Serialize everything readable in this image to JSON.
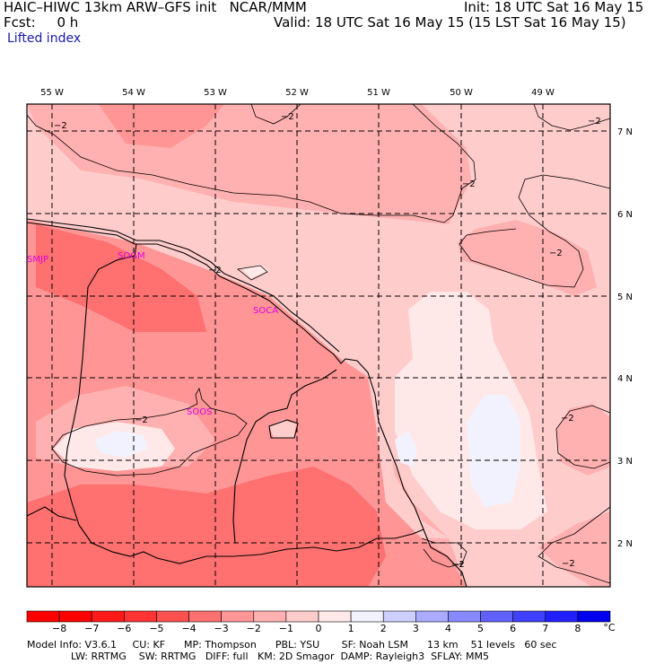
{
  "header": {
    "model_line": "HAIC–HIWC 13km ARW–GFS init   NCAR/MMM",
    "fcst_line": "Fcst:     0 h",
    "field": "Lifted index",
    "init": "Init: 18 UTC Sat 16 May 15",
    "valid": "Valid: 18 UTC Sat 16 May 15 (15 LST Sat 16 May 15)"
  },
  "map": {
    "lon_labels": [
      "55 W",
      "54 W",
      "53 W",
      "52 W",
      "51 W",
      "50 W",
      "49 W"
    ],
    "lat_labels": [
      "7 N",
      "6 N",
      "5 N",
      "4 N",
      "3 N",
      "2 N"
    ],
    "stations": [
      "SMJP",
      "SOGM",
      "SOCA",
      "SOOS"
    ],
    "contour_label": "−2"
  },
  "colorbar": {
    "labels": [
      "−8",
      "−7",
      "−6",
      "−5",
      "−4",
      "−3",
      "−2",
      "−1",
      "0",
      "1",
      "2",
      "3",
      "4",
      "5",
      "6",
      "7",
      "8"
    ],
    "unit": "°C",
    "colors": [
      "#ff0000",
      "#ff1a1a",
      "#ff3333",
      "#ff5050",
      "#ff7070",
      "#ff9595",
      "#ffb0b0",
      "#ffcccc",
      "#ffe8e8",
      "#f2f2ff",
      "#cfcfff",
      "#aaaaff",
      "#8888ff",
      "#6060ff",
      "#4040ff",
      "#2020ff",
      "#0000ee"
    ]
  },
  "footer": {
    "line1": "Model Info: V3.6.1     CU: KF      MP: Thompson      PBL: YSU       SF: Noah LSM      13 km    51 levels   60 sec",
    "line2": "              LW: RRTMG    SW: RRTMG   DIFF: full   KM: 2D Smagor  DAMP: Rayleigh3  SFLAY: MM5"
  }
}
